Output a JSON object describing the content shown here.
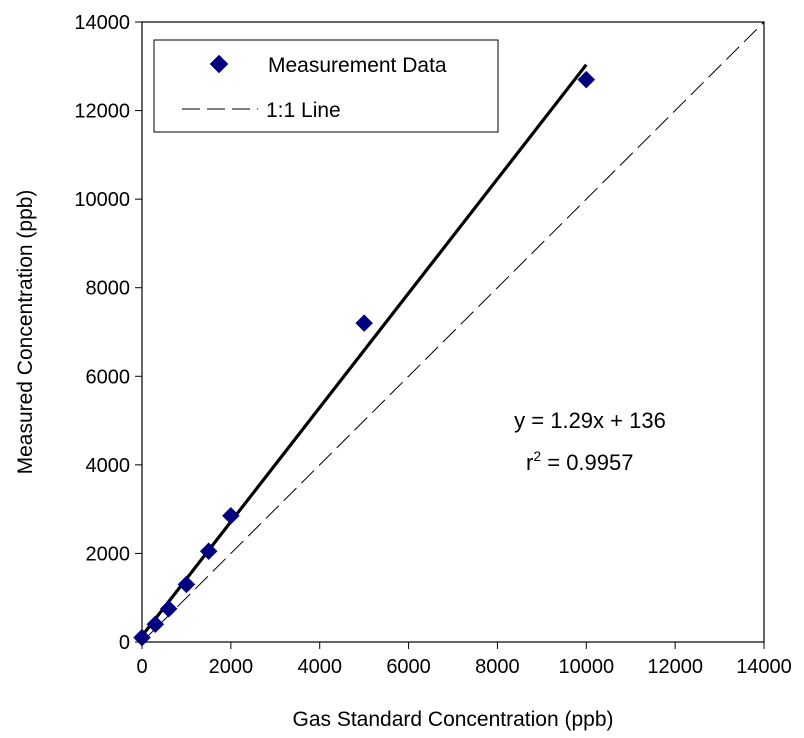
{
  "chart_data": {
    "type": "scatter",
    "xlabel": "Gas Standard Concentration (ppb)",
    "ylabel": "Measured Concentration (ppb)",
    "xlim": [
      0,
      14000
    ],
    "ylim": [
      0,
      14000
    ],
    "xticks": [
      "0",
      "2000",
      "4000",
      "6000",
      "8000",
      "10000",
      "12000",
      "14000"
    ],
    "yticks": [
      "0",
      "2000",
      "4000",
      "6000",
      "8000",
      "10000",
      "12000",
      "14000"
    ],
    "grid": false,
    "legend_position": "top-left",
    "series": [
      {
        "name": "Measurement Data",
        "marker": "diamond",
        "color": "#000080",
        "x": [
          0,
          300,
          600,
          1000,
          1500,
          2000,
          5000,
          10000
        ],
        "y": [
          100,
          400,
          750,
          1300,
          2050,
          2850,
          7200,
          12700
        ]
      }
    ],
    "fit_line": {
      "slope": 1.29,
      "intercept": 136,
      "x_range": [
        0,
        10000
      ],
      "color": "#000000"
    },
    "reference_line": {
      "name": "1:1 Line",
      "style": "dashed",
      "color": "#000000"
    },
    "annotation": {
      "equation": "y = 1.29x + 136",
      "r2_prefix": "r",
      "r2_sup": "2",
      "r2_value": " = 0.9957"
    }
  }
}
